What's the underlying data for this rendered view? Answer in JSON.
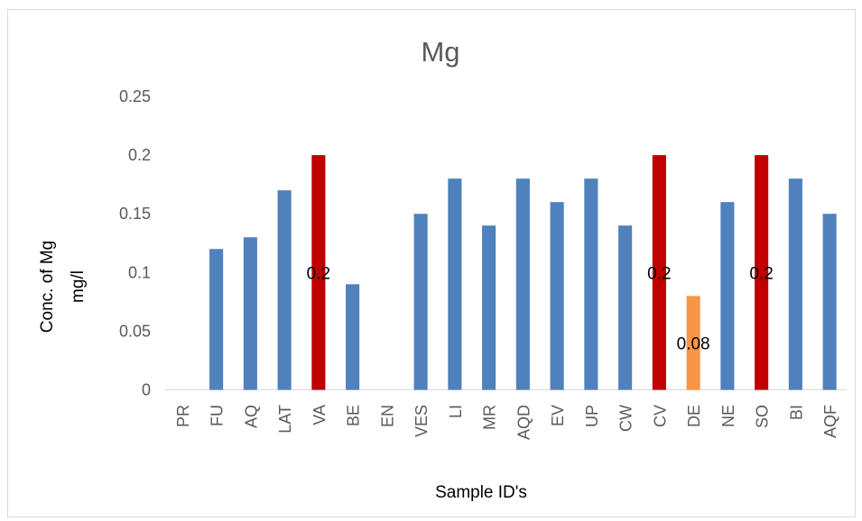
{
  "chart_data": {
    "type": "bar",
    "title": "Mg",
    "xlabel": "Sample ID's",
    "ylabel_lines": [
      "Conc. of Mg",
      "mg/l"
    ],
    "categories": [
      "PR",
      "FU",
      "AQ",
      "LAT",
      "VA",
      "BE",
      "EN",
      "VES",
      "LI",
      "MR",
      "AQD",
      "EV",
      "UP",
      "CW",
      "CV",
      "DE",
      "NE",
      "SO",
      "BI",
      "AQF"
    ],
    "values": [
      0,
      0.12,
      0.13,
      0.17,
      0.2,
      0.09,
      0,
      0.15,
      0.18,
      0.14,
      0.18,
      0.16,
      0.18,
      0.14,
      0.2,
      0.08,
      0.16,
      0.2,
      0.18,
      0.15
    ],
    "bar_colors": [
      "#4f81bd",
      "#4f81bd",
      "#4f81bd",
      "#4f81bd",
      "#c00000",
      "#4f81bd",
      "#4f81bd",
      "#4f81bd",
      "#4f81bd",
      "#4f81bd",
      "#4f81bd",
      "#4f81bd",
      "#4f81bd",
      "#4f81bd",
      "#c00000",
      "#f79646",
      "#4f81bd",
      "#c00000",
      "#4f81bd",
      "#4f81bd"
    ],
    "data_labels": [
      "",
      "",
      "",
      "",
      "0.2",
      "",
      "",
      "",
      "",
      "",
      "",
      "",
      "",
      "",
      "0.2",
      "0.08",
      "",
      "0.2",
      "",
      ""
    ],
    "yticks": [
      "0",
      "0.05",
      "0.1",
      "0.15",
      "0.2",
      "0.25"
    ],
    "ylim": [
      0,
      0.25
    ],
    "grid": false,
    "legend": "none"
  }
}
